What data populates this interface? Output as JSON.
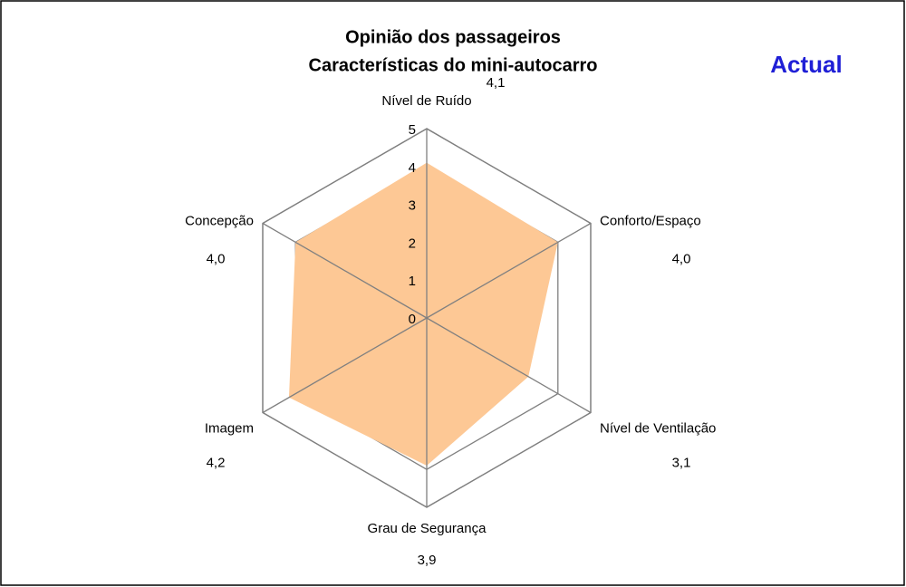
{
  "chart_data": {
    "type": "radar",
    "title": "Opinião dos passageiros",
    "subtitle": "Características do mini-autocarro",
    "annotation": "Actual",
    "annotation_color": "#1f1fd6",
    "categories": [
      "Nível de Ruído",
      "Conforto/Espaço",
      "Nível de Ventilação",
      "Grau de Segurança",
      "Imagem",
      "Concepção"
    ],
    "values": [
      4.1,
      4.0,
      3.1,
      3.9,
      4.2,
      4.0
    ],
    "value_labels": [
      "4,1",
      "4,0",
      "3,1",
      "3,9",
      "4,2",
      "4,0"
    ],
    "color": "#fdc895",
    "ylim": [
      0,
      5
    ],
    "yticks": [
      0,
      1,
      2,
      3,
      4,
      5
    ],
    "grid": true
  }
}
